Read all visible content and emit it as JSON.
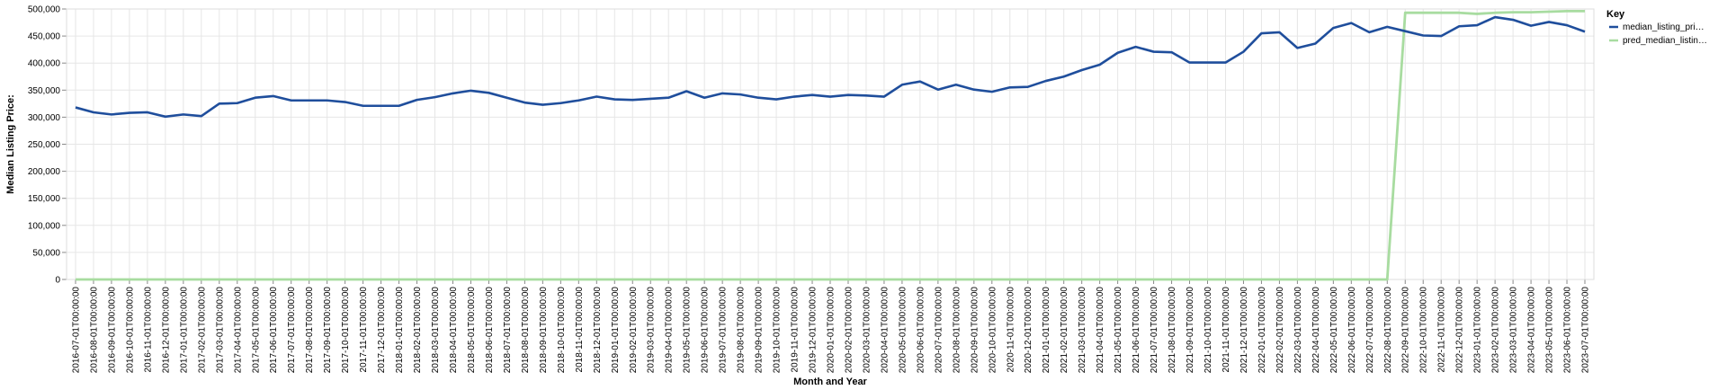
{
  "chart_data": {
    "type": "line",
    "xlabel": "Month and Year",
    "ylabel": "Median Listing Price:",
    "ylim": [
      0,
      500000
    ],
    "yticks": [
      "0",
      "50,000",
      "100,000",
      "150,000",
      "200,000",
      "250,000",
      "300,000",
      "350,000",
      "400,000",
      "450,000",
      "500,000"
    ],
    "ytick_values": [
      0,
      50000,
      100000,
      150000,
      200000,
      250000,
      300000,
      350000,
      400000,
      450000,
      500000
    ],
    "grid": true,
    "legend": {
      "title": "Key",
      "placement": "top-right",
      "entries": [
        "median_listing_pri…",
        "pred_median_listin…"
      ]
    },
    "x": [
      "2016-07-01T00:00:00",
      "2016-08-01T00:00:00",
      "2016-09-01T00:00:00",
      "2016-10-01T00:00:00",
      "2016-11-01T00:00:00",
      "2016-12-01T00:00:00",
      "2017-01-01T00:00:00",
      "2017-02-01T00:00:00",
      "2017-03-01T00:00:00",
      "2017-04-01T00:00:00",
      "2017-05-01T00:00:00",
      "2017-06-01T00:00:00",
      "2017-07-01T00:00:00",
      "2017-08-01T00:00:00",
      "2017-09-01T00:00:00",
      "2017-10-01T00:00:00",
      "2017-11-01T00:00:00",
      "2017-12-01T00:00:00",
      "2018-01-01T00:00:00",
      "2018-02-01T00:00:00",
      "2018-03-01T00:00:00",
      "2018-04-01T00:00:00",
      "2018-05-01T00:00:00",
      "2018-06-01T00:00:00",
      "2018-07-01T00:00:00",
      "2018-08-01T00:00:00",
      "2018-09-01T00:00:00",
      "2018-10-01T00:00:00",
      "2018-11-01T00:00:00",
      "2018-12-01T00:00:00",
      "2019-01-01T00:00:00",
      "2019-02-01T00:00:00",
      "2019-03-01T00:00:00",
      "2019-04-01T00:00:00",
      "2019-05-01T00:00:00",
      "2019-06-01T00:00:00",
      "2019-07-01T00:00:00",
      "2019-08-01T00:00:00",
      "2019-09-01T00:00:00",
      "2019-10-01T00:00:00",
      "2019-11-01T00:00:00",
      "2019-12-01T00:00:00",
      "2020-01-01T00:00:00",
      "2020-02-01T00:00:00",
      "2020-03-01T00:00:00",
      "2020-04-01T00:00:00",
      "2020-05-01T00:00:00",
      "2020-06-01T00:00:00",
      "2020-07-01T00:00:00",
      "2020-08-01T00:00:00",
      "2020-09-01T00:00:00",
      "2020-10-01T00:00:00",
      "2020-11-01T00:00:00",
      "2020-12-01T00:00:00",
      "2021-01-01T00:00:00",
      "2021-02-01T00:00:00",
      "2021-03-01T00:00:00",
      "2021-04-01T00:00:00",
      "2021-05-01T00:00:00",
      "2021-06-01T00:00:00",
      "2021-07-01T00:00:00",
      "2021-08-01T00:00:00",
      "2021-09-01T00:00:00",
      "2021-10-01T00:00:00",
      "2021-11-01T00:00:00",
      "2021-12-01T00:00:00",
      "2022-01-01T00:00:00",
      "2022-02-01T00:00:00",
      "2022-03-01T00:00:00",
      "2022-04-01T00:00:00",
      "2022-05-01T00:00:00",
      "2022-06-01T00:00:00",
      "2022-07-01T00:00:00",
      "2022-08-01T00:00:00",
      "2022-09-01T00:00:00",
      "2022-10-01T00:00:00",
      "2022-11-01T00:00:00",
      "2022-12-01T00:00:00",
      "2023-01-01T00:00:00",
      "2023-02-01T00:00:00",
      "2023-03-01T00:00:00",
      "2023-04-01T00:00:00",
      "2023-05-01T00:00:00",
      "2023-06-01T00:00:00",
      "2023-07-01T00:00:00"
    ],
    "series": [
      {
        "name": "median_listing_pri…",
        "color": "#1f4e9c",
        "values": [
          318000,
          309000,
          305000,
          308000,
          309000,
          301000,
          305000,
          302000,
          325000,
          326000,
          336000,
          339000,
          331000,
          331000,
          331000,
          328000,
          321000,
          321000,
          321000,
          332000,
          337000,
          344000,
          349000,
          345000,
          336000,
          327000,
          323000,
          326000,
          331000,
          338000,
          333000,
          332000,
          334000,
          336000,
          348000,
          336000,
          344000,
          342000,
          336000,
          333000,
          338000,
          341000,
          338000,
          341000,
          340000,
          338000,
          360000,
          366000,
          351000,
          360000,
          351000,
          347000,
          355000,
          356000,
          367000,
          375000,
          387000,
          397000,
          419000,
          430000,
          421000,
          420000,
          401000,
          401000,
          401000,
          421000,
          455000,
          457000,
          428000,
          436000,
          465000,
          474000,
          457000,
          467000,
          459000,
          451000,
          450000,
          468000,
          470000,
          485000,
          480000,
          469000,
          476000,
          470000,
          458000
        ]
      },
      {
        "name": "pred_median_listin…",
        "color": "#a8dca0",
        "values": [
          0,
          0,
          0,
          0,
          0,
          0,
          0,
          0,
          0,
          0,
          0,
          0,
          0,
          0,
          0,
          0,
          0,
          0,
          0,
          0,
          0,
          0,
          0,
          0,
          0,
          0,
          0,
          0,
          0,
          0,
          0,
          0,
          0,
          0,
          0,
          0,
          0,
          0,
          0,
          0,
          0,
          0,
          0,
          0,
          0,
          0,
          0,
          0,
          0,
          0,
          0,
          0,
          0,
          0,
          0,
          0,
          0,
          0,
          0,
          0,
          0,
          0,
          0,
          0,
          0,
          0,
          0,
          0,
          0,
          0,
          0,
          0,
          0,
          0,
          493000,
          493000,
          493000,
          493000,
          491000,
          493000,
          494000,
          494000,
          495000,
          496000,
          496000
        ]
      }
    ]
  }
}
